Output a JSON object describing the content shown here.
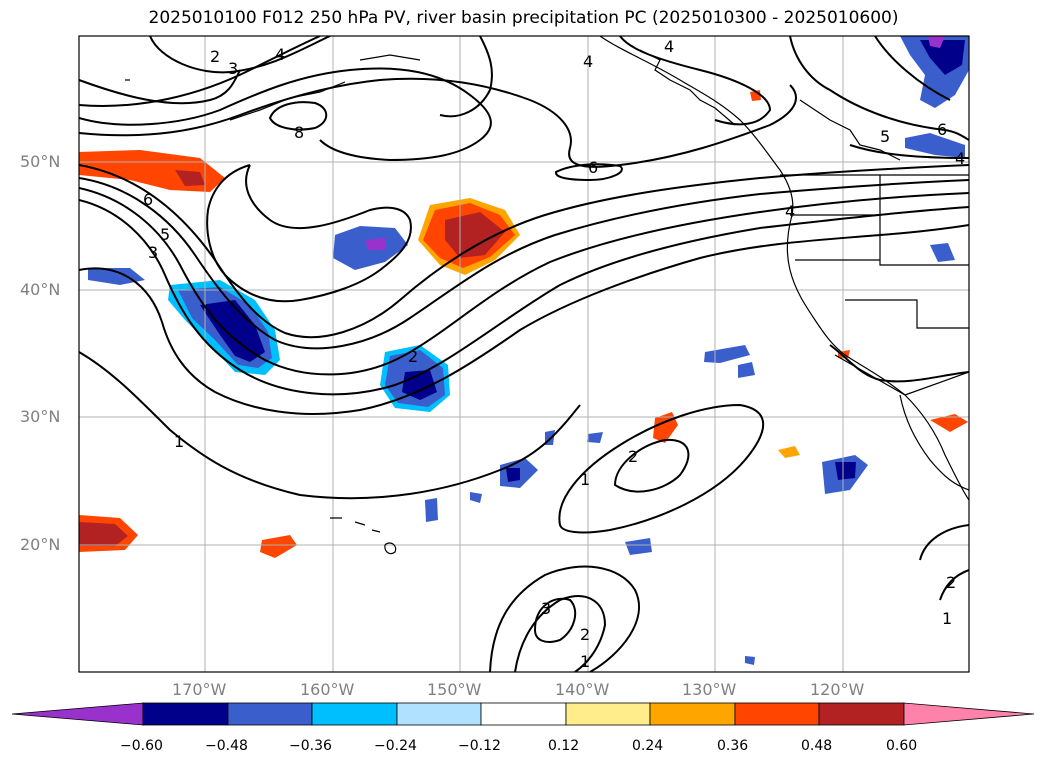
{
  "title": "2025010100 F012 250 hPa PV, river basin precipitation PC (2025010300 - 2025010600)",
  "lat_labels": [
    "50°N",
    "40°N",
    "30°N",
    "20°N"
  ],
  "lon_labels": [
    "170°W",
    "160°W",
    "150°W",
    "140°W",
    "130°W",
    "120°W"
  ],
  "colorbar": {
    "ticks": [
      "−0.60",
      "−0.48",
      "−0.36",
      "−0.24",
      "−0.12",
      "0.12",
      "0.24",
      "0.36",
      "0.48",
      "0.60"
    ],
    "colors": [
      "#9932cc",
      "#00008b",
      "#3a5fcd",
      "#00bfff",
      "#b0e2ff",
      "#ffffff",
      "#ffec8b",
      "#ffa500",
      "#ff4500",
      "#b22222",
      "#ff82ab"
    ]
  },
  "contour_labels": {
    "c1": "2",
    "c2": "3",
    "c3": "4",
    "c4": "8",
    "c5": "4",
    "c6": "6",
    "c7": "6",
    "c8": "5",
    "c9": "3",
    "c10": "2",
    "c11": "1",
    "c12": "1",
    "c13": "2",
    "c14": "3",
    "c15": "2",
    "c16": "1",
    "c17": "2",
    "c18": "1",
    "c19": "5",
    "c20": "6",
    "c21": "4",
    "c22": "4",
    "c23": "4"
  }
}
